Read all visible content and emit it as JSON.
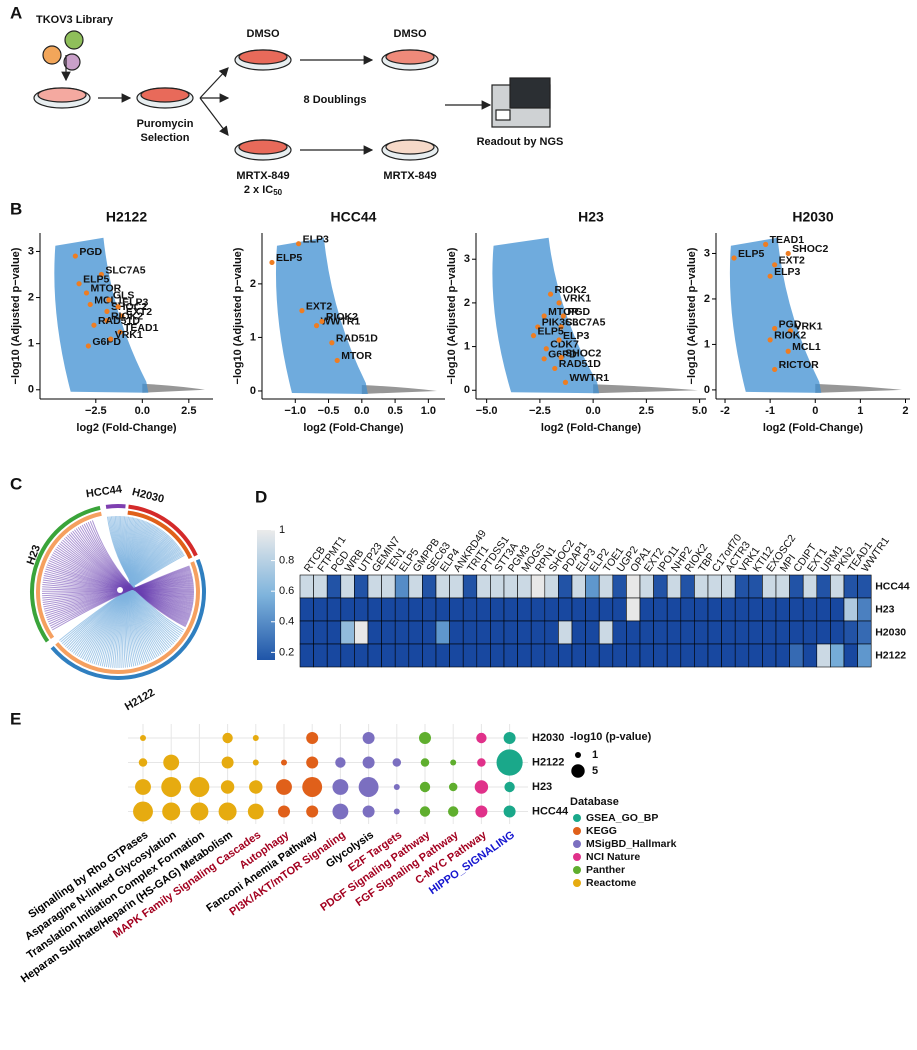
{
  "panel_labels": [
    "A",
    "B",
    "C",
    "D",
    "E"
  ],
  "schematic": {
    "library": "TKOV3 Library",
    "selection": [
      "Puromycin",
      "Selection"
    ],
    "dmso": [
      "DMSO",
      "DMSO"
    ],
    "doublings": "8 Doublings",
    "drug": [
      "MRTX-849",
      "MRTX-849"
    ],
    "dose": "2 x IC",
    "dose_sub": "50",
    "readout": "Readout by NGS"
  },
  "volcano": [
    {
      "title": "H2122",
      "xlabel": "log2 (Fold-Change)",
      "ylabel": "−log10 (Adjusted p−value)",
      "xlim": [
        -5.5,
        3.8
      ],
      "ylim": [
        -0.2,
        3.4
      ],
      "xticks": [
        {
          "value": -2.5,
          "label": "−2.5"
        },
        {
          "value": 0,
          "label": "0.0"
        },
        {
          "value": 2.5,
          "label": "2.5"
        }
      ],
      "yticks": [
        0,
        1,
        2,
        3
      ],
      "genes": [
        {
          "name": "PGD",
          "x": -3.6,
          "y": 2.9
        },
        {
          "name": "SLC7A5",
          "x": -2.2,
          "y": 2.5
        },
        {
          "name": "ELP5",
          "x": -3.4,
          "y": 2.3
        },
        {
          "name": "MTOR",
          "x": -3.0,
          "y": 2.1
        },
        {
          "name": "MCL1",
          "x": -2.8,
          "y": 1.85
        },
        {
          "name": "GLS",
          "x": -1.8,
          "y": 1.95
        },
        {
          "name": "SHOC2",
          "x": -1.9,
          "y": 1.7
        },
        {
          "name": "ELP3",
          "x": -1.3,
          "y": 1.8
        },
        {
          "name": "EXT2",
          "x": -1.1,
          "y": 1.6
        },
        {
          "name": "RIOK2",
          "x": -1.9,
          "y": 1.5
        },
        {
          "name": "RAD51D",
          "x": -2.6,
          "y": 1.4
        },
        {
          "name": "TEAD1",
          "x": -1.2,
          "y": 1.25
        },
        {
          "name": "G6PD",
          "x": -2.9,
          "y": 0.95
        },
        {
          "name": "VRK1",
          "x": -1.7,
          "y": 1.1
        }
      ]
    },
    {
      "title": "HCC44",
      "xlabel": "log2 (Fold-Change)",
      "ylabel": "−log10 (Adjusted p−value)",
      "xlim": [
        -1.5,
        1.25
      ],
      "ylim": [
        -0.15,
        2.95
      ],
      "xticks": [
        {
          "value": -1,
          "label": "−1.0"
        },
        {
          "value": -0.5,
          "label": "−0.5"
        },
        {
          "value": 0,
          "label": "0.0"
        },
        {
          "value": 0.5,
          "label": "0.5"
        },
        {
          "value": 1,
          "label": "1.0"
        }
      ],
      "yticks": [
        0,
        1,
        2
      ],
      "genes": [
        {
          "name": "ELP3",
          "x": -0.95,
          "y": 2.75
        },
        {
          "name": "ELP5",
          "x": -1.35,
          "y": 2.4
        },
        {
          "name": "EXT2",
          "x": -0.9,
          "y": 1.5
        },
        {
          "name": "WWTR1",
          "x": -0.68,
          "y": 1.22
        },
        {
          "name": "RIOK2",
          "x": -0.6,
          "y": 1.3
        },
        {
          "name": "RAD51D",
          "x": -0.45,
          "y": 0.9
        },
        {
          "name": "MTOR",
          "x": -0.37,
          "y": 0.57
        }
      ]
    },
    {
      "title": "H23",
      "xlabel": "log2 (Fold-Change)",
      "ylabel": "−log10 (Adjusted p−value)",
      "xlim": [
        -5.5,
        5.3
      ],
      "ylim": [
        -0.2,
        3.6
      ],
      "xticks": [
        {
          "value": -5,
          "label": "−5.0"
        },
        {
          "value": -2.5,
          "label": "−2.5"
        },
        {
          "value": 0,
          "label": "0.0"
        },
        {
          "value": 2.5,
          "label": "2.5"
        },
        {
          "value": 5,
          "label": "5.0"
        }
      ],
      "yticks": [
        0,
        1,
        2,
        3
      ],
      "genes": [
        {
          "name": "RIOK2",
          "x": -2.0,
          "y": 2.2
        },
        {
          "name": "VRK1",
          "x": -1.6,
          "y": 2.0
        },
        {
          "name": "MTOR",
          "x": -2.3,
          "y": 1.7
        },
        {
          "name": "PGD",
          "x": -1.4,
          "y": 1.7
        },
        {
          "name": "PIK3C3",
          "x": -2.6,
          "y": 1.45
        },
        {
          "name": "SLC7A5",
          "x": -1.5,
          "y": 1.45
        },
        {
          "name": "ELP5",
          "x": -2.8,
          "y": 1.25
        },
        {
          "name": "CDK7",
          "x": -2.2,
          "y": 0.95
        },
        {
          "name": "ELP3",
          "x": -1.6,
          "y": 1.15
        },
        {
          "name": "G6PD",
          "x": -2.3,
          "y": 0.72
        },
        {
          "name": "SHOC2",
          "x": -1.5,
          "y": 0.75
        },
        {
          "name": "RAD51D",
          "x": -1.8,
          "y": 0.5
        },
        {
          "name": "WWTR1",
          "x": -1.3,
          "y": 0.18
        }
      ]
    },
    {
      "title": "H2030",
      "xlabel": "log2 (Fold-Change)",
      "ylabel": "−log10 (Adjusted p−value)",
      "xlim": [
        -2.2,
        2.1
      ],
      "ylim": [
        -0.2,
        3.45
      ],
      "xticks": [
        -2,
        -1,
        0,
        1,
        2
      ],
      "yticks": [
        0,
        1,
        2,
        3
      ],
      "genes": [
        {
          "name": "TEAD1",
          "x": -1.1,
          "y": 3.2
        },
        {
          "name": "SHOC2",
          "x": -0.6,
          "y": 3.0
        },
        {
          "name": "ELP5",
          "x": -1.8,
          "y": 2.9
        },
        {
          "name": "EXT2",
          "x": -0.9,
          "y": 2.75
        },
        {
          "name": "ELP3",
          "x": -1.0,
          "y": 2.5
        },
        {
          "name": "PGD",
          "x": -0.9,
          "y": 1.35
        },
        {
          "name": "VRK1",
          "x": -0.55,
          "y": 1.3
        },
        {
          "name": "RIOK2",
          "x": -1.0,
          "y": 1.1
        },
        {
          "name": "MCL1",
          "x": -0.6,
          "y": 0.85
        },
        {
          "name": "RICTOR",
          "x": -0.9,
          "y": 0.45
        }
      ]
    }
  ],
  "chord": {
    "labels": [
      "HCC44",
      "H2030",
      "H23",
      "H2122"
    ]
  },
  "heatmap": {
    "columns": [
      "RTCB",
      "FTPMT1",
      "PGD",
      "WRB",
      "UTP23",
      "GEMIN7",
      "TEN1",
      "ELP5",
      "GMPPB",
      "SEC63",
      "ELP4",
      "ANKRD49",
      "TRIT1",
      "PTDSS1",
      "STT3A",
      "PGM3",
      "MOGS",
      "RPN1",
      "SHOC2",
      "PDAP1",
      "ELP3",
      "ELP2",
      "TOE1",
      "UGP2",
      "OPA1",
      "EXT2",
      "IPO11",
      "NHP2",
      "RIOK2",
      "TBP",
      "C17orf70",
      "ACTR3",
      "VRK1",
      "KTI12",
      "EXOSC2",
      "MPI",
      "CDIPT",
      "EXT1",
      "URM1",
      "PKN2",
      "TEAD1",
      "WWTR1"
    ],
    "rows": [
      "HCC44",
      "H23",
      "H2030",
      "H2122"
    ],
    "values": [
      [
        0.9,
        0.9,
        0.2,
        0.9,
        0.2,
        0.9,
        0.9,
        0.45,
        0.9,
        0.2,
        0.9,
        0.9,
        0.2,
        0.9,
        0.9,
        0.9,
        0.9,
        1.0,
        0.9,
        0.2,
        0.9,
        0.5,
        0.9,
        0.2,
        1.0,
        0.9,
        0.2,
        0.9,
        0.2,
        0.9,
        0.9,
        0.9,
        0.2,
        0.2,
        0.9,
        0.9,
        0.2,
        0.9,
        0.2,
        0.9,
        0.2,
        0.2
      ],
      [
        0.15,
        0.15,
        0.15,
        0.15,
        0.15,
        0.15,
        0.15,
        0.15,
        0.15,
        0.15,
        0.15,
        0.15,
        0.15,
        0.15,
        0.15,
        0.15,
        0.15,
        0.15,
        0.15,
        0.15,
        0.15,
        0.15,
        0.15,
        0.15,
        1.0,
        0.15,
        0.15,
        0.15,
        0.15,
        0.15,
        0.15,
        0.15,
        0.15,
        0.15,
        0.15,
        0.15,
        0.15,
        0.15,
        0.15,
        0.15,
        0.8,
        0.4
      ],
      [
        0.15,
        0.15,
        0.15,
        0.7,
        1.0,
        0.15,
        0.15,
        0.15,
        0.15,
        0.15,
        0.5,
        0.15,
        0.15,
        0.15,
        0.15,
        0.15,
        0.15,
        0.15,
        0.15,
        0.9,
        0.15,
        0.15,
        0.9,
        0.15,
        0.15,
        0.15,
        0.15,
        0.15,
        0.15,
        0.15,
        0.15,
        0.15,
        0.15,
        0.15,
        0.15,
        0.15,
        0.15,
        0.15,
        0.15,
        0.15,
        0.2,
        0.3
      ],
      [
        0.15,
        0.15,
        0.15,
        0.15,
        0.15,
        0.15,
        0.15,
        0.15,
        0.15,
        0.15,
        0.15,
        0.15,
        0.15,
        0.15,
        0.15,
        0.15,
        0.15,
        0.15,
        0.15,
        0.15,
        0.15,
        0.15,
        0.15,
        0.15,
        0.15,
        0.15,
        0.15,
        0.15,
        0.15,
        0.15,
        0.15,
        0.15,
        0.15,
        0.15,
        0.15,
        0.15,
        0.3,
        0.15,
        0.9,
        0.6,
        0.15,
        0.5
      ]
    ],
    "colorbar_lim": [
      0.15,
      1
    ],
    "colorbar_ticks": [
      1,
      0.8,
      0.6,
      0.4,
      0.2
    ]
  },
  "bubble": {
    "pathways": [
      "Signalling by Rho GTPases",
      "Asparagine N-linked Glycosylation",
      "Translation Initiation Complex Formation",
      "Heparan Sulphate/Heparin (HS-GAG) Metabolism",
      "MAPK Family Signaling Cascades",
      "Autophagy",
      "Fanconi Anemia Pathway",
      "PI3K/AKT/mTOR Signaling",
      "Glycolysis",
      "E2F Targets",
      "PDGF Signaling Pathway",
      "FGF Signaling Pathway",
      "C-MYC Pathway",
      "HIPPO_SIGNALING"
    ],
    "pathway_label_colors": [
      "#000000",
      "#000000",
      "#000000",
      "#000000",
      "#a3001f",
      "#a3001f",
      "#000000",
      "#a3001f",
      "#000000",
      "#a3001f",
      "#a3001f",
      "#a3001f",
      "#a3001f",
      "#1515d0"
    ],
    "pathway_database": [
      "Reactome",
      "Reactome",
      "Reactome",
      "Reactome",
      "Reactome",
      "KEGG",
      "KEGG",
      "MSigBD_Hallmark",
      "MSigBD_Hallmark",
      "MSigBD_Hallmark",
      "Panther",
      "Panther",
      "NCI Nature",
      "GSEA_GO_BP"
    ],
    "rows": [
      "H2030",
      "H2122",
      "H23",
      "HCC44"
    ],
    "values": [
      [
        1,
        null,
        null,
        3,
        1,
        null,
        4,
        null,
        4,
        null,
        4,
        null,
        3,
        4
      ],
      [
        2,
        7,
        null,
        4,
        1,
        1,
        4,
        3,
        4,
        2,
        2,
        1,
        2,
        19
      ],
      [
        7,
        11,
        11,
        5,
        5,
        7,
        11,
        7,
        11,
        1,
        3,
        2,
        5,
        3
      ],
      [
        11,
        9,
        9,
        9,
        7,
        4,
        4,
        7,
        4,
        1,
        3,
        3,
        4,
        4
      ]
    ],
    "size_title": "-log10 (p-value)",
    "size_legend": [
      1,
      5
    ],
    "database_title": "Database",
    "databases": [
      {
        "name": "GSEA_GO_BP",
        "color": "#1aa88a"
      },
      {
        "name": "KEGG",
        "color": "#e0601a"
      },
      {
        "name": "MSigBD_Hallmark",
        "color": "#7b6fc0"
      },
      {
        "name": "NCI Nature",
        "color": "#e0318a"
      },
      {
        "name": "Panther",
        "color": "#5fae2e"
      },
      {
        "name": "Reactome",
        "color": "#e6ab10"
      }
    ]
  }
}
